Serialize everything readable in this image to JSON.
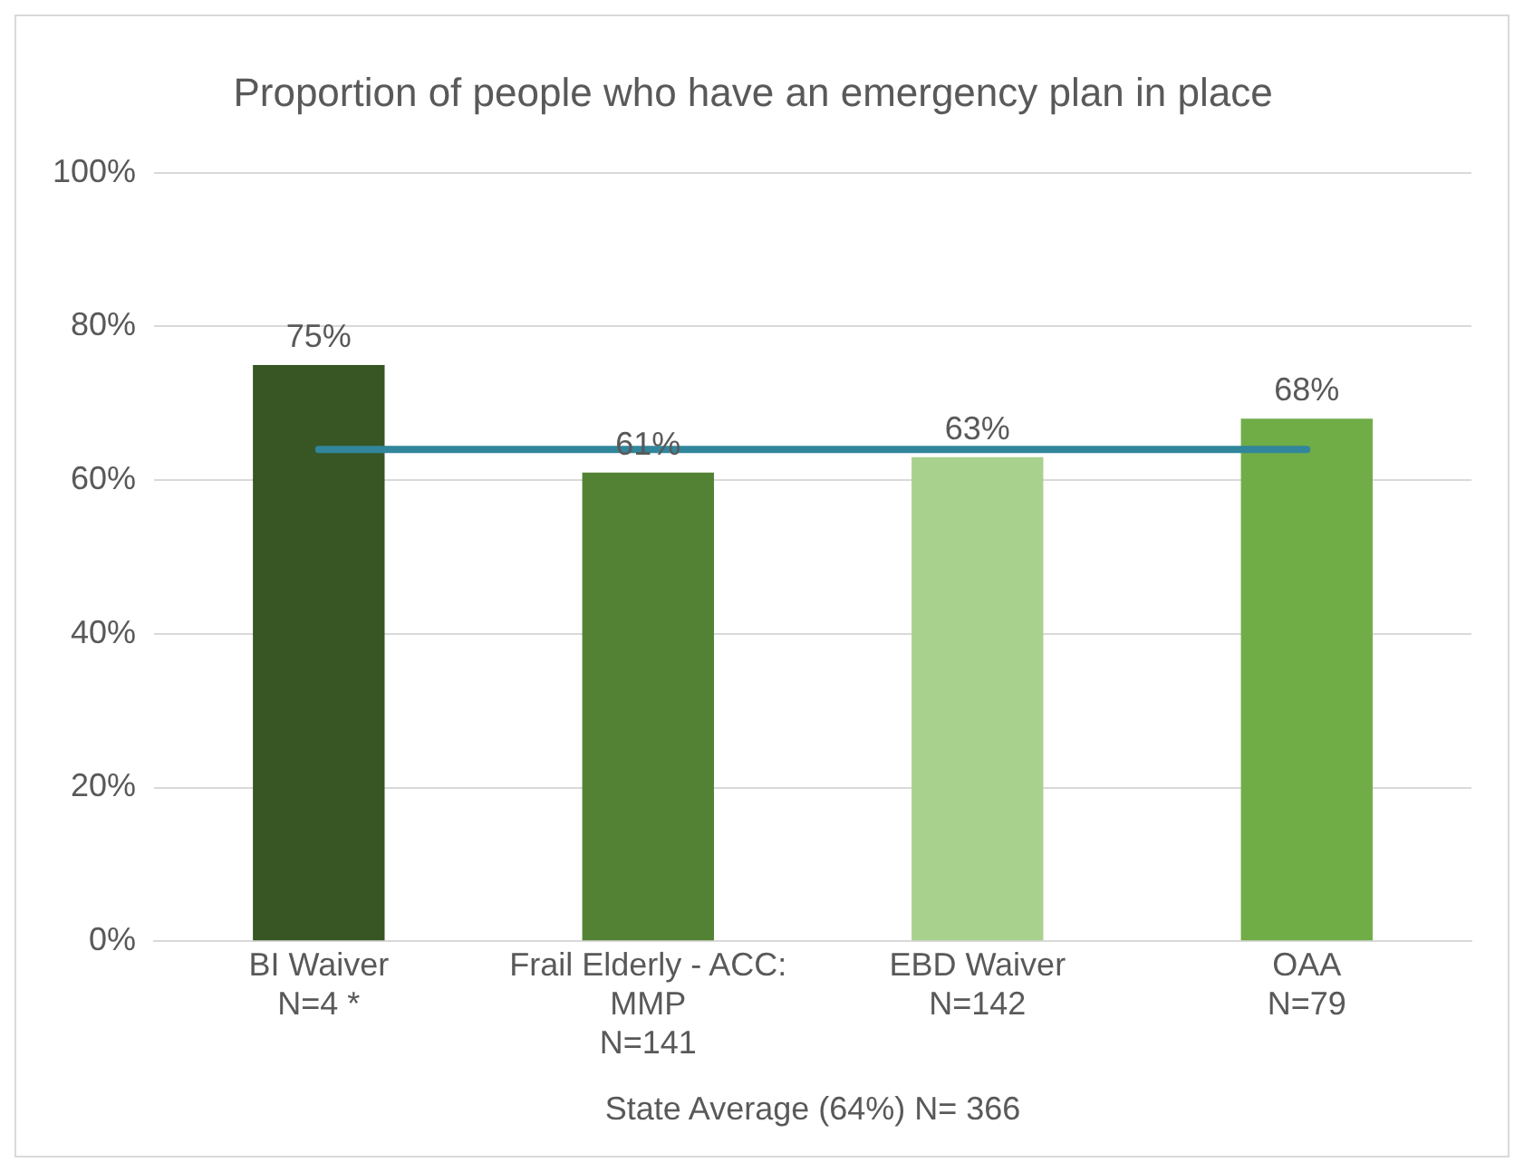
{
  "chart_data": {
    "type": "bar",
    "title": "Proportion of people who have an emergency plan in place",
    "xlabel": "State Average (64%) N= 366",
    "categories": [
      "BI Waiver\nN=4 *",
      "Frail Elderly - ACC:\nMMP\nN=141",
      "EBD Waiver\nN=142",
      "OAA\nN=79"
    ],
    "values": [
      75,
      61,
      63,
      68
    ],
    "colors": [
      "#375623",
      "#548235",
      "#a9d18e",
      "#70ad47"
    ],
    "value_labels": [
      "75%",
      "61%",
      "63%",
      "68%"
    ],
    "ylim": [
      0,
      100
    ],
    "yticks": [
      {
        "value": 0,
        "label": "0%"
      },
      {
        "value": 20,
        "label": "20%"
      },
      {
        "value": 40,
        "label": "40%"
      },
      {
        "value": 60,
        "label": "60%"
      },
      {
        "value": 80,
        "label": "80%"
      },
      {
        "value": 100,
        "label": "100%"
      }
    ],
    "grid": "y",
    "legend": false,
    "ref_lines": [
      {
        "axis": "y",
        "value": 64,
        "color": "#31869b"
      }
    ]
  }
}
